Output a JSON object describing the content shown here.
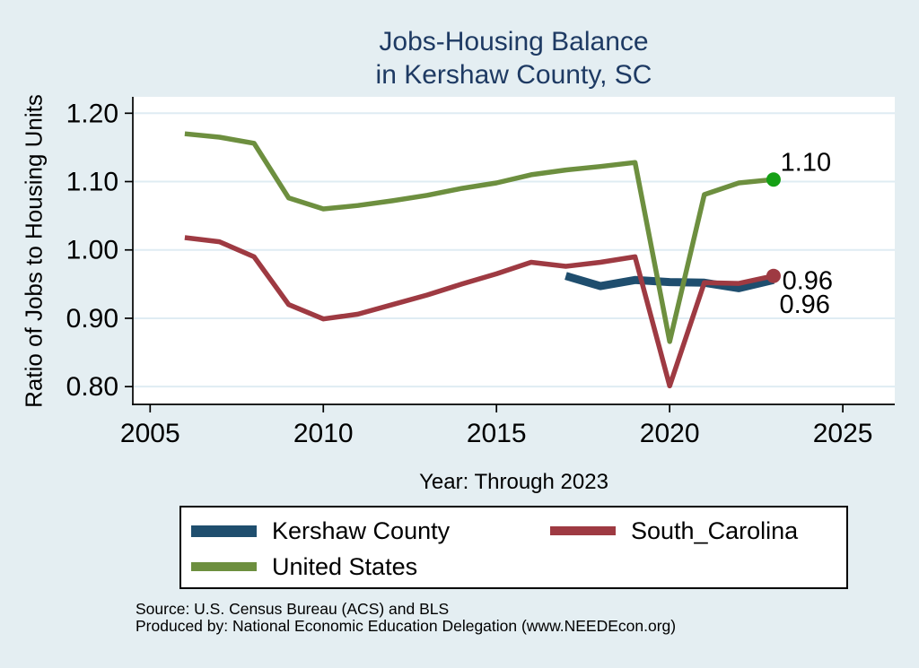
{
  "title": {
    "line1": "Jobs-Housing Balance",
    "line2": "in Kershaw County, SC"
  },
  "colors": {
    "background": "#e4eef2",
    "plot_bg": "#ffffff",
    "grid": "#dfecf3",
    "axis": "#000000",
    "title_text": "#1e3a63",
    "kershaw": "#1f4e6e",
    "south_carolina": "#9e3a42",
    "united_states": "#6d8f3f",
    "us_end_marker": "#15a015",
    "sc_end_marker": "#9e3a42"
  },
  "chart_data": {
    "type": "line",
    "title": "Jobs-Housing Balance in Kershaw County, SC",
    "xlabel": "Year: Through 2023",
    "ylabel": "Ratio of Jobs to Housing Units",
    "xlim": [
      2004.5,
      2026.5
    ],
    "ylim": [
      0.774,
      1.224
    ],
    "xticks": [
      2005,
      2010,
      2015,
      2020,
      2025
    ],
    "yticks": [
      1.2,
      1.1,
      1.0,
      0.9,
      0.8
    ],
    "grid": "horizontal",
    "legend_position": "bottom-box",
    "series": [
      {
        "name": "Kershaw County",
        "color": "#1f4e6e",
        "line_width": 9,
        "x": [
          2017,
          2018,
          2019,
          2020,
          2021,
          2022,
          2023
        ],
        "values": [
          0.962,
          0.947,
          0.956,
          0.953,
          0.952,
          0.944,
          0.956
        ]
      },
      {
        "name": "South_Carolina",
        "color": "#9e3a42",
        "line_width": 5.5,
        "x": [
          2006,
          2007,
          2008,
          2009,
          2010,
          2011,
          2012,
          2013,
          2014,
          2015,
          2016,
          2017,
          2018,
          2019,
          2020,
          2021,
          2022,
          2023
        ],
        "values": [
          1.018,
          1.012,
          0.99,
          0.92,
          0.899,
          0.906,
          0.92,
          0.934,
          0.95,
          0.965,
          0.982,
          0.976,
          0.982,
          0.99,
          0.801,
          0.952,
          0.951,
          0.962
        ]
      },
      {
        "name": "United States",
        "color": "#6d8f3f",
        "line_width": 5.5,
        "x": [
          2006,
          2007,
          2008,
          2009,
          2010,
          2011,
          2012,
          2013,
          2014,
          2015,
          2016,
          2017,
          2018,
          2019,
          2020,
          2021,
          2022,
          2023
        ],
        "values": [
          1.17,
          1.165,
          1.156,
          1.076,
          1.06,
          1.065,
          1.072,
          1.08,
          1.09,
          1.098,
          1.11,
          1.117,
          1.122,
          1.128,
          0.866,
          1.081,
          1.098,
          1.103
        ]
      }
    ],
    "end_markers": [
      {
        "series": "United States",
        "year": 2023,
        "value": 1.103,
        "color": "#15a015",
        "radius": 8
      },
      {
        "series": "South_Carolina",
        "year": 2023,
        "value": 0.962,
        "color": "#9e3a42",
        "radius": 8
      }
    ],
    "annotations": [
      {
        "text": "1.10",
        "year": 2023.2,
        "value": 1.129
      },
      {
        "text": "0.96",
        "year": 2023.25,
        "value": 0.956
      },
      {
        "text": "0.96",
        "year": 2023.17,
        "value": 0.921
      }
    ]
  },
  "source": {
    "line1": "Source: U.S. Census Bureau (ACS) and BLS",
    "line2": "Produced by: National Economic Education Delegation (www.NEEDEcon.org)"
  }
}
